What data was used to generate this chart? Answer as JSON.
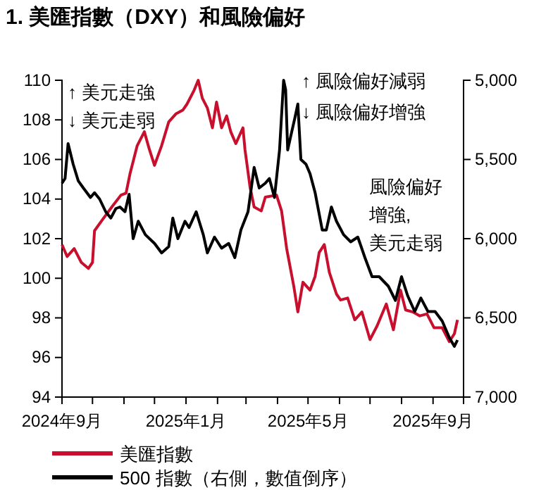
{
  "chart_data": {
    "type": "line",
    "title": "1. 美匯指數（DXY）和風險偏好",
    "xlim": [
      "2024-09-01",
      "2025-10-01"
    ],
    "xticks": [
      {
        "value": "2024-09-01",
        "label": "2024年9月"
      },
      {
        "value": "2024-10-01",
        "label": null
      },
      {
        "value": "2024-11-01",
        "label": null
      },
      {
        "value": "2024-12-01",
        "label": null
      },
      {
        "value": "2025-01-01",
        "label": "2025年1月"
      },
      {
        "value": "2025-02-01",
        "label": null
      },
      {
        "value": "2025-03-01",
        "label": null
      },
      {
        "value": "2025-04-01",
        "label": null
      },
      {
        "value": "2025-05-01",
        "label": "2025年5月"
      },
      {
        "value": "2025-06-01",
        "label": null
      },
      {
        "value": "2025-07-01",
        "label": null
      },
      {
        "value": "2025-08-01",
        "label": null
      },
      {
        "value": "2025-09-01",
        "label": "2025年9月"
      },
      {
        "value": "2025-10-01",
        "label": null
      }
    ],
    "ylim": [
      94,
      110
    ],
    "yticks": [
      94,
      96,
      98,
      100,
      102,
      104,
      106,
      108,
      110
    ],
    "y2lim": [
      7000,
      5000
    ],
    "y2ticks": [
      {
        "value": 5000,
        "label": "5,000"
      },
      {
        "value": 5500,
        "label": "5,500"
      },
      {
        "value": 6000,
        "label": "6,000"
      },
      {
        "value": 6500,
        "label": "6,500"
      },
      {
        "value": 7000,
        "label": "7,000"
      }
    ],
    "series": [
      {
        "name": "美匯指數",
        "color": "#c8102e",
        "x": [
          "2024-09-01",
          "2024-09-06",
          "2024-09-13",
          "2024-09-20",
          "2024-09-27",
          "2024-10-01",
          "2024-10-03",
          "2024-10-10",
          "2024-10-20",
          "2024-10-29",
          "2024-11-03",
          "2024-11-07",
          "2024-11-14",
          "2024-11-21",
          "2024-11-26",
          "2024-12-01",
          "2024-12-08",
          "2024-12-15",
          "2024-12-22",
          "2024-12-29",
          "2025-01-02",
          "2025-01-09",
          "2025-01-13",
          "2025-01-17",
          "2025-01-22",
          "2025-01-27",
          "2025-01-31",
          "2025-02-05",
          "2025-02-10",
          "2025-02-14",
          "2025-02-19",
          "2025-02-26",
          "2025-02-28",
          "2025-03-05",
          "2025-03-09",
          "2025-03-16",
          "2025-03-20",
          "2025-03-31",
          "2025-04-05",
          "2025-04-10",
          "2025-04-17",
          "2025-04-21",
          "2025-04-26",
          "2025-05-03",
          "2025-05-08",
          "2025-05-12",
          "2025-05-17",
          "2025-05-22",
          "2025-05-29",
          "2025-06-02",
          "2025-06-09",
          "2025-06-16",
          "2025-06-23",
          "2025-07-01",
          "2025-07-08",
          "2025-07-17",
          "2025-07-24",
          "2025-07-31",
          "2025-08-05",
          "2025-08-12",
          "2025-08-19",
          "2025-08-26",
          "2025-09-02",
          "2025-09-10",
          "2025-09-17",
          "2025-09-22",
          "2025-09-25"
        ],
        "values": [
          101.7,
          101.1,
          101.5,
          100.8,
          100.5,
          100.8,
          102.4,
          102.9,
          103.6,
          104.2,
          104.3,
          105.3,
          106.7,
          107.4,
          106.5,
          105.7,
          106.7,
          107.9,
          108.3,
          108.5,
          108.8,
          109.5,
          110.0,
          109.1,
          108.6,
          107.6,
          108.9,
          107.6,
          108.2,
          107.4,
          106.8,
          107.6,
          106.5,
          104.6,
          103.6,
          103.4,
          104.1,
          104.2,
          103.4,
          101.5,
          99.6,
          98.3,
          99.8,
          99.4,
          100.1,
          101.3,
          101.7,
          100.3,
          99.2,
          98.9,
          99.0,
          97.9,
          98.3,
          96.9,
          97.6,
          98.7,
          97.4,
          99.4,
          98.4,
          98.3,
          98.1,
          98.2,
          97.5,
          97.5,
          96.8,
          97.2,
          97.9
        ]
      },
      {
        "name": "500 指數（右側，數值倒序）",
        "color": "#000000",
        "axis": "y2",
        "x": [
          "2024-09-01",
          "2024-09-04",
          "2024-09-07",
          "2024-09-12",
          "2024-09-17",
          "2024-09-22",
          "2024-09-29",
          "2024-10-03",
          "2024-10-08",
          "2024-10-14",
          "2024-10-19",
          "2024-10-24",
          "2024-10-28",
          "2024-11-02",
          "2024-11-06",
          "2024-11-10",
          "2024-11-15",
          "2024-11-22",
          "2024-12-01",
          "2024-12-08",
          "2024-12-15",
          "2024-12-19",
          "2024-12-24",
          "2024-12-31",
          "2025-01-04",
          "2025-01-11",
          "2025-01-18",
          "2025-01-22",
          "2025-01-29",
          "2025-02-05",
          "2025-02-12",
          "2025-02-18",
          "2025-02-24",
          "2025-03-03",
          "2025-03-09",
          "2025-03-14",
          "2025-03-20",
          "2025-03-24",
          "2025-03-29",
          "2025-04-03",
          "2025-04-07",
          "2025-04-09",
          "2025-04-11",
          "2025-04-15",
          "2025-04-18",
          "2025-04-21",
          "2025-04-24",
          "2025-04-29",
          "2025-05-03",
          "2025-05-08",
          "2025-05-15",
          "2025-05-19",
          "2025-05-24",
          "2025-05-29",
          "2025-06-05",
          "2025-06-12",
          "2025-06-19",
          "2025-06-26",
          "2025-07-03",
          "2025-07-10",
          "2025-07-19",
          "2025-07-26",
          "2025-08-01",
          "2025-08-07",
          "2025-08-14",
          "2025-08-20",
          "2025-08-27",
          "2025-09-03",
          "2025-09-10",
          "2025-09-17",
          "2025-09-22",
          "2025-09-25"
        ],
        "values": [
          5650,
          5620,
          5400,
          5530,
          5635,
          5680,
          5740,
          5710,
          5750,
          5830,
          5870,
          5810,
          5800,
          5830,
          5720,
          6000,
          5890,
          5975,
          6030,
          6090,
          6050,
          5870,
          6000,
          5890,
          5930,
          5830,
          5975,
          6090,
          5990,
          6060,
          6030,
          6120,
          5945,
          5830,
          5550,
          5680,
          5650,
          5620,
          5740,
          5440,
          5000,
          5060,
          5440,
          5325,
          5240,
          5150,
          5500,
          5530,
          5590,
          5710,
          5945,
          5945,
          5800,
          5890,
          5975,
          6020,
          5990,
          6120,
          6240,
          6240,
          6300,
          6390,
          6240,
          6360,
          6460,
          6375,
          6460,
          6460,
          6520,
          6625,
          6680,
          6640
        ]
      }
    ],
    "annotations": [
      "↑ 美元走強",
      "↓ 美元走弱",
      "↑ 風險偏好減弱",
      "↓ 風險偏好增強",
      "風險偏好增強, 美元走弱"
    ],
    "legend": "bottom",
    "line_style": "solid",
    "marker": "none",
    "grid": false
  }
}
